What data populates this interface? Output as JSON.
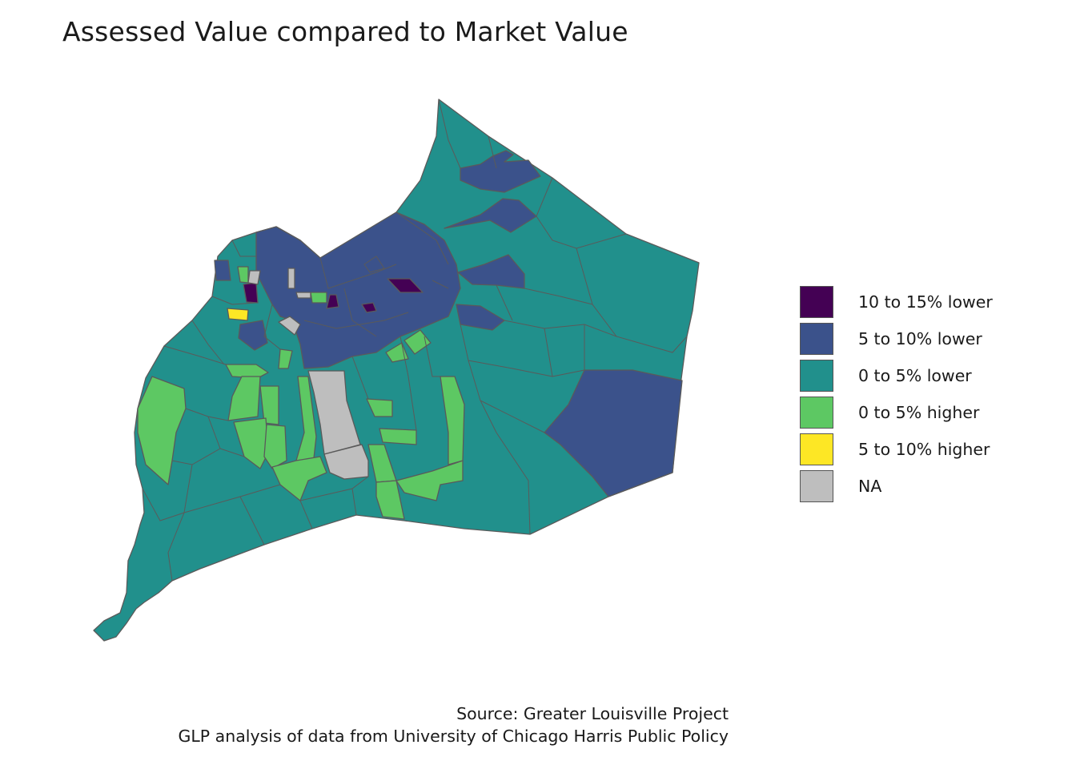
{
  "title": "Assessed Value compared to Market Value",
  "legend": [
    {
      "label": "10 to 15% lower",
      "color": "#440154"
    },
    {
      "label": "5 to 10% lower",
      "color": "#3B528B"
    },
    {
      "label": "0 to 5% lower",
      "color": "#21908C"
    },
    {
      "label": "0 to 5% higher",
      "color": "#5DC863"
    },
    {
      "label": "5 to 10% higher",
      "color": "#FDE725"
    },
    {
      "label": "NA",
      "color": "#BEBEBE"
    }
  ],
  "caption": {
    "line1": "Source: Greater Louisville Project",
    "line2": "GLP analysis of data from University of Chicago Harris Public Policy"
  }
}
